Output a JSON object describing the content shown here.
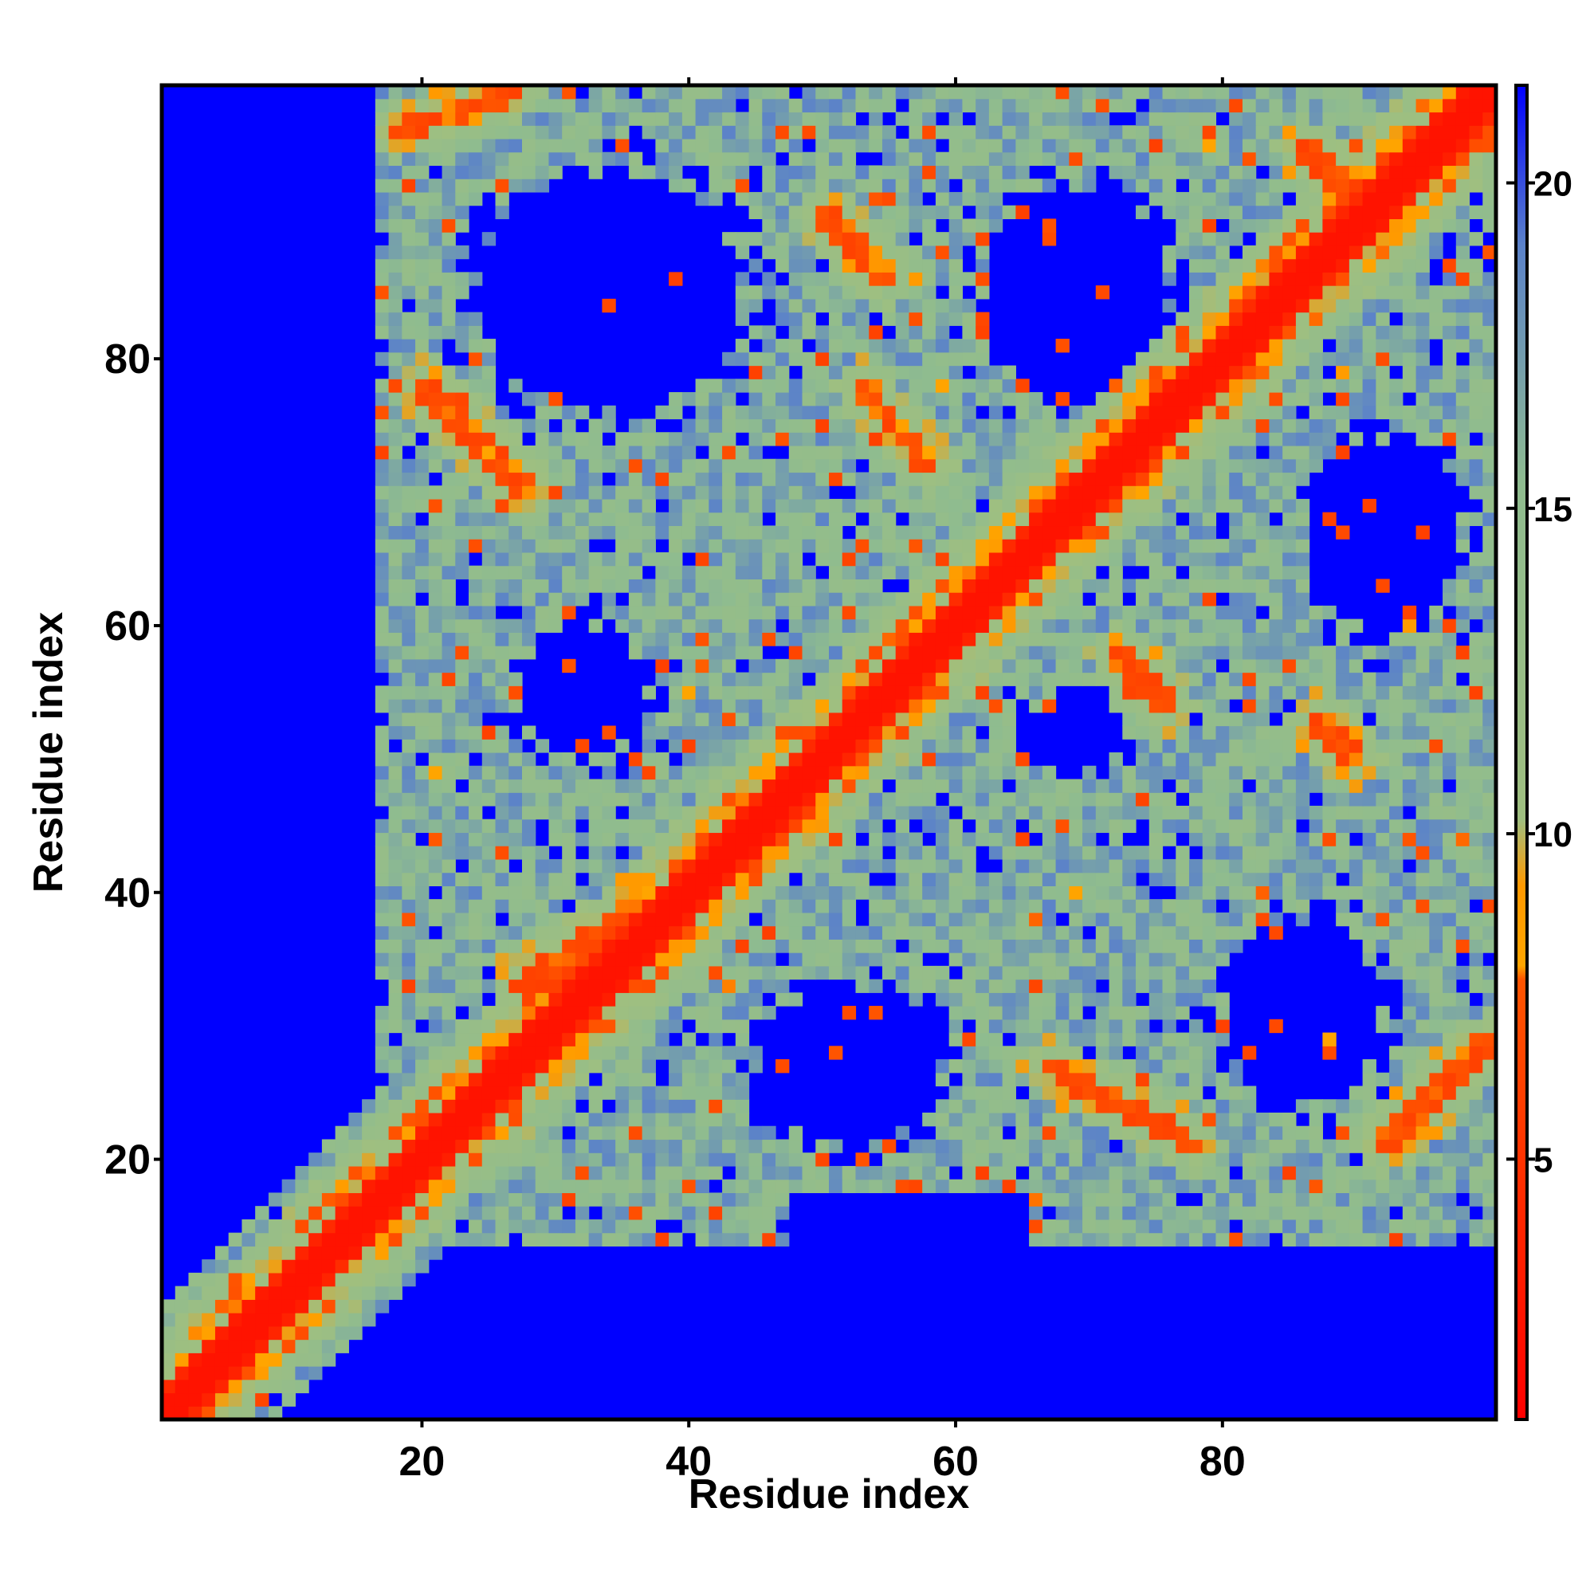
{
  "chart_data": {
    "type": "heatmap",
    "title": "",
    "xlabel": "Residue index",
    "ylabel": "Residue index",
    "x_range": [
      1,
      100
    ],
    "y_range": [
      1,
      100
    ],
    "x_ticks": [
      20,
      40,
      60,
      80
    ],
    "y_ticks": [
      20,
      40,
      60,
      80
    ],
    "colorbar": {
      "ticks": [
        5,
        10,
        15,
        20
      ],
      "range": [
        1,
        21.5
      ],
      "colors": [
        {
          "stop": 0.0,
          "color": "#ff0000"
        },
        {
          "stop": 0.33,
          "color": "#ff5500"
        },
        {
          "stop": 0.34,
          "color": "#ffa500"
        },
        {
          "stop": 0.4,
          "color": "#ff9900"
        },
        {
          "stop": 0.45,
          "color": "#9fbf80"
        },
        {
          "stop": 0.7,
          "color": "#8fbc8f"
        },
        {
          "stop": 0.88,
          "color": "#5b82c9"
        },
        {
          "stop": 1.0,
          "color": "#0000ff"
        }
      ]
    },
    "description_of_values": "Pairwise residue distance map; values capped at ~21 (blue = far). Diagonal ~0 (red).",
    "features": {
      "diagonal": {
        "from": [
          1,
          1
        ],
        "to": [
          100,
          100
        ],
        "value": 2.5
      },
      "parallel_band": {
        "from": [
          28,
          33
        ],
        "to": [
          48,
          46
        ],
        "value": 6
      },
      "antiparallel_bands": [
        {
          "from": [
            18,
            97
          ],
          "to": [
            27,
            100
          ],
          "value": 6
        },
        {
          "from": [
            20,
            78
          ],
          "to": [
            28,
            70
          ],
          "value": 6
        },
        {
          "from": [
            50,
            91
          ],
          "to": [
            55,
            86
          ],
          "value": 6
        },
        {
          "from": [
            53,
            78
          ],
          "to": [
            58,
            72
          ],
          "value": 6
        },
        {
          "from": [
            72,
            58
          ],
          "to": [
            76,
            54
          ],
          "value": 6
        },
        {
          "from": [
            87,
            53
          ],
          "to": [
            90,
            50
          ],
          "value": 6
        },
        {
          "from": [
            67,
            27
          ],
          "to": [
            78,
            21
          ],
          "value": 6
        },
        {
          "from": [
            92,
            21
          ],
          "to": [
            100,
            29
          ],
          "value": 6
        },
        {
          "from": [
            86,
            96
          ],
          "to": [
            92,
            90
          ],
          "value": 6
        }
      ],
      "far_regions": [
        {
          "cx": 34,
          "cy": 85,
          "rx": 10,
          "ry": 9
        },
        {
          "cx": 69,
          "cy": 85,
          "rx": 7,
          "ry": 8
        },
        {
          "cx": 92,
          "cy": 67,
          "rx": 6,
          "ry": 7
        },
        {
          "cx": 32,
          "cy": 55,
          "rx": 5,
          "ry": 5
        },
        {
          "cx": 52,
          "cy": 27,
          "rx": 7,
          "ry": 6
        },
        {
          "cx": 86,
          "cy": 31,
          "rx": 6,
          "ry": 7
        },
        {
          "cx": 69,
          "cy": 52,
          "rx": 4,
          "ry": 3
        }
      ]
    }
  }
}
